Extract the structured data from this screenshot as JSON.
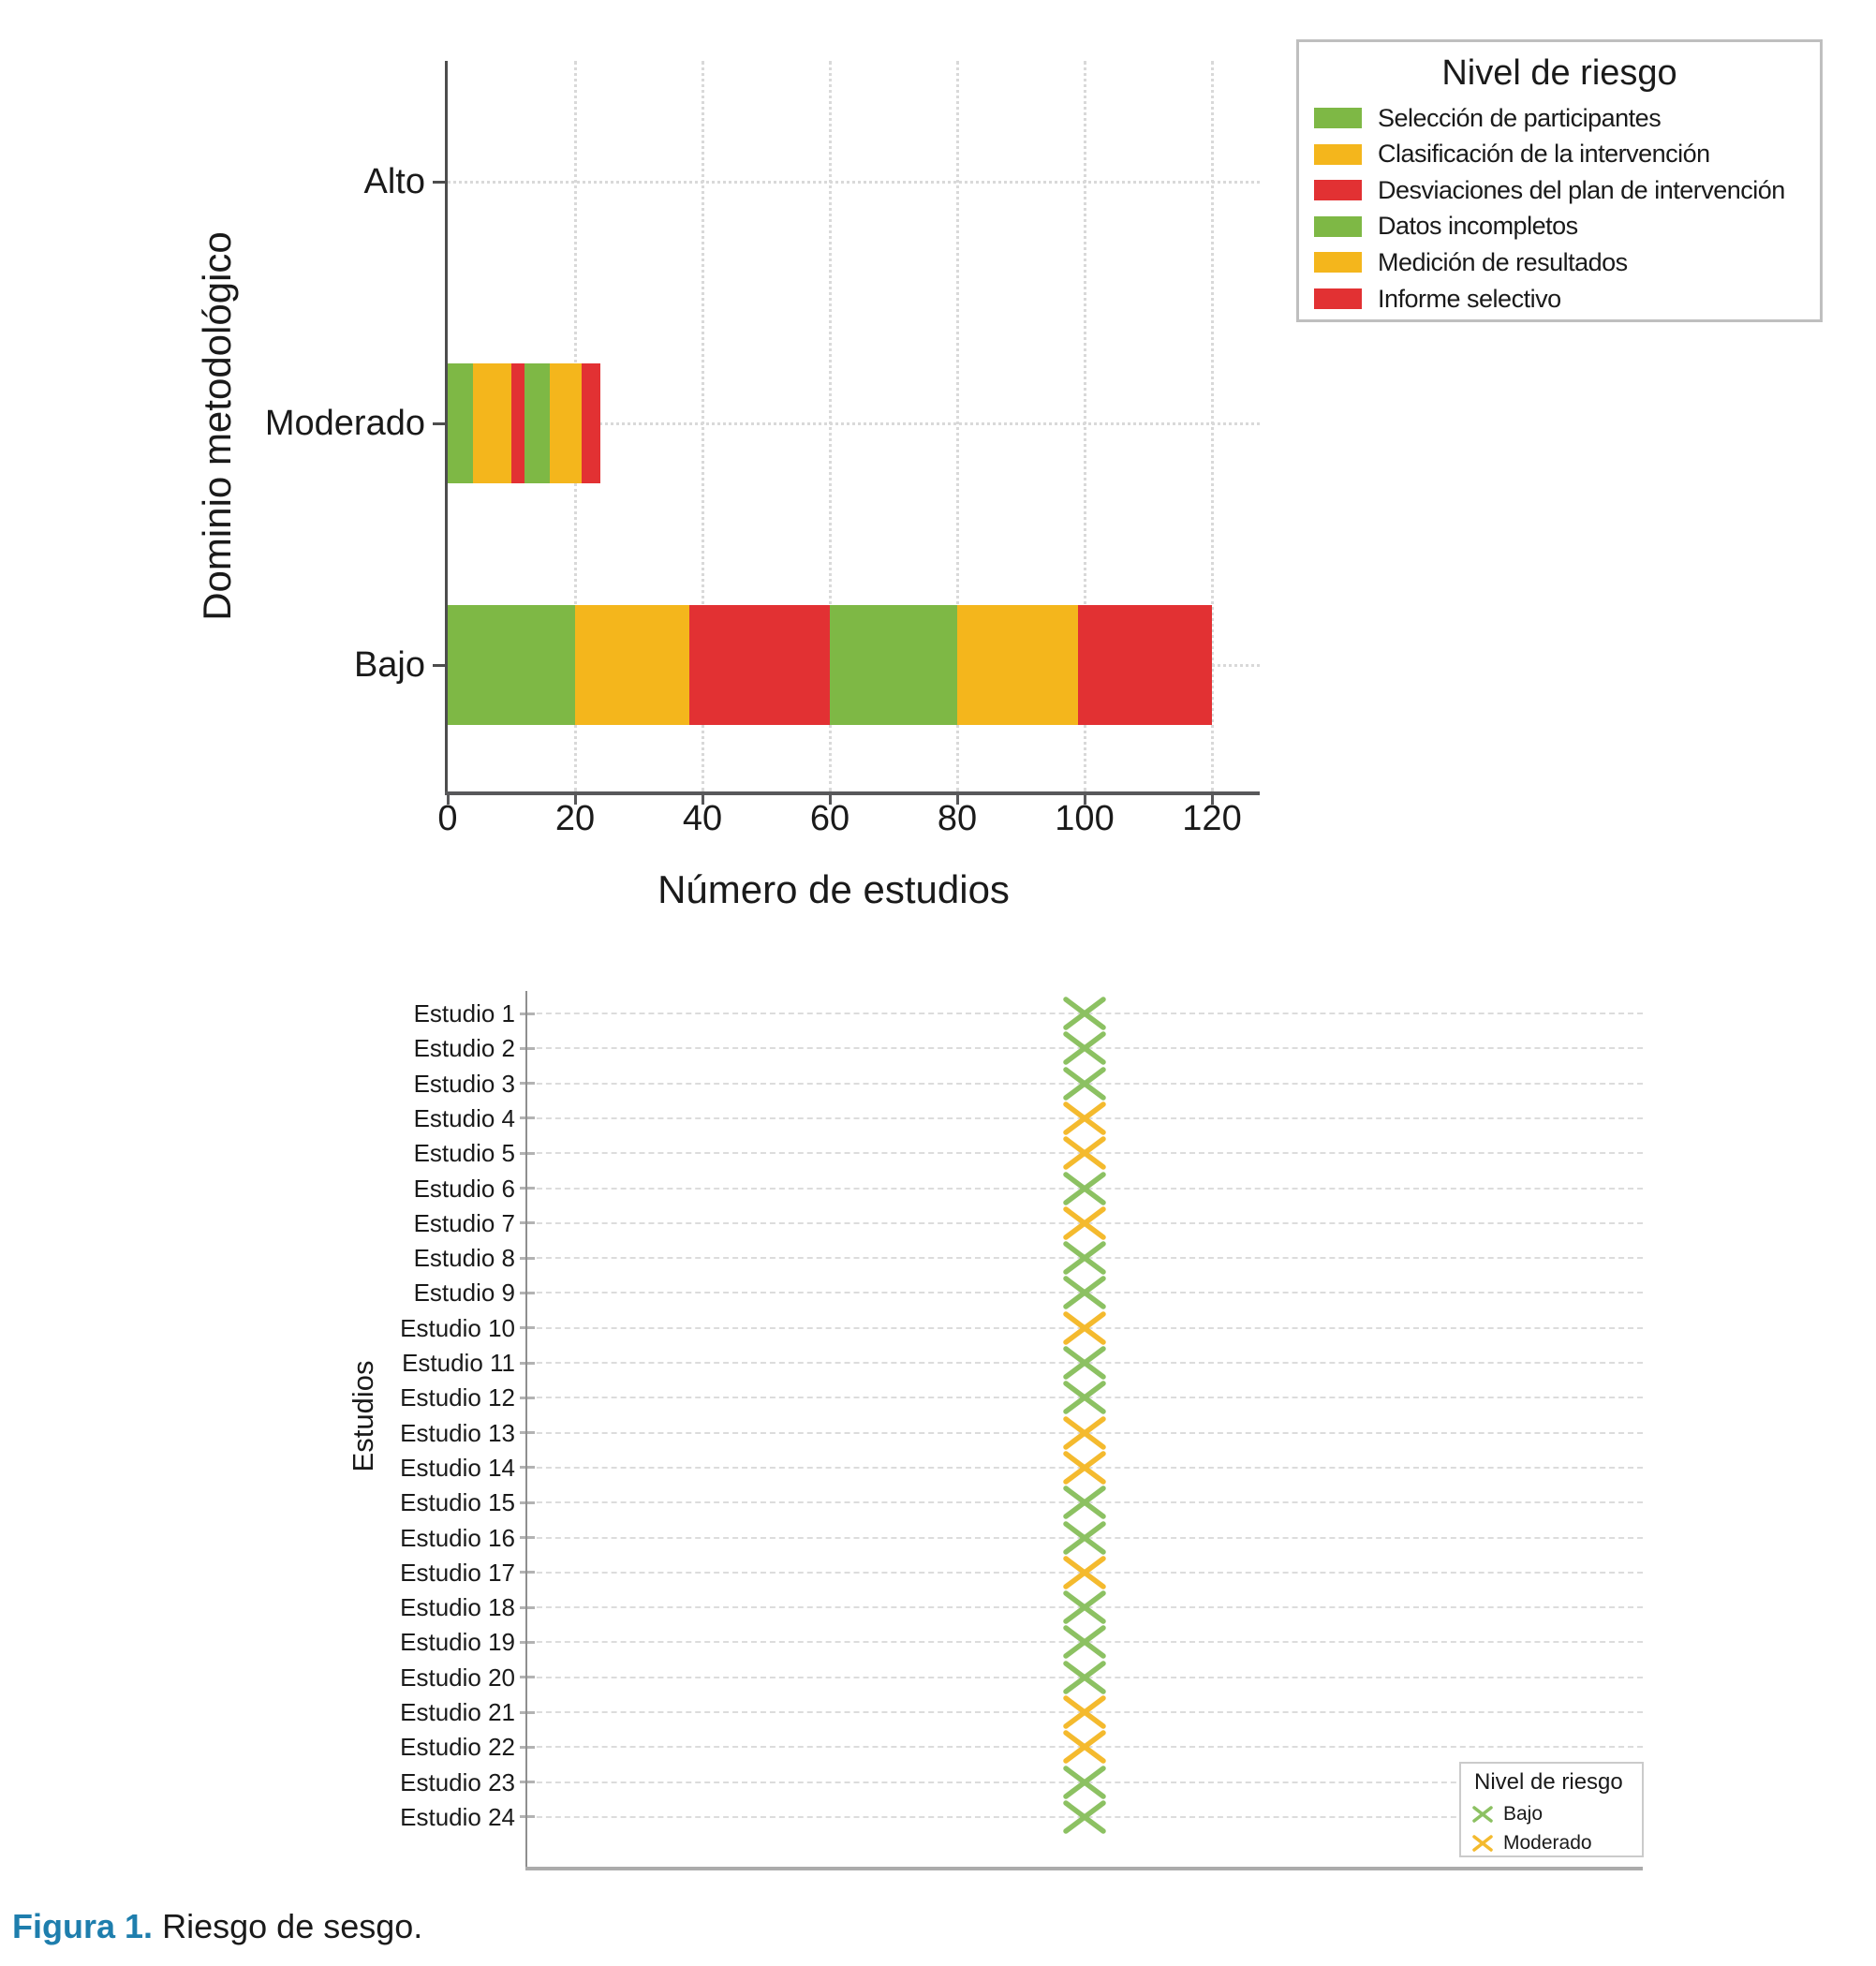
{
  "caption": {
    "label": "Figura 1.",
    "text": "Riesgo de sesgo."
  },
  "colors": {
    "green": "#7EB845",
    "orange": "#F4B61C",
    "red": "#E23133",
    "marker_green": "#8CC162",
    "marker_orange": "#F4BA2E",
    "caption_blue": "#1E7EAD",
    "text": "#1A1A1A",
    "grid": "#D9D9D9",
    "grid_light": "#DCDCDC",
    "axis_dark": "#4D4D4D",
    "axis_mid": "#58585A",
    "bottom_axis_left": "#8F8F8F",
    "bottom_axis": "#ABABAB",
    "tick_light": "#B3B3B3"
  },
  "chart_data": [
    {
      "type": "bar",
      "orientation": "horizontal-stacked",
      "title": "",
      "xlabel": "Número de estudios",
      "ylabel": "Dominio metodológico",
      "categories": [
        "Alto",
        "Moderado",
        "Bajo"
      ],
      "x_ticks": [
        0,
        20,
        40,
        60,
        80,
        100,
        120
      ],
      "xlim": [
        0,
        127.5
      ],
      "grid": true,
      "legend": {
        "title": "Nivel de riesgo",
        "position": "top-right"
      },
      "series": [
        {
          "name": "Selección de participantes",
          "color": "#7EB845",
          "values": [
            0,
            4,
            20
          ]
        },
        {
          "name": "Clasificación de la intervención",
          "color": "#F4B61C",
          "values": [
            0,
            6,
            18
          ]
        },
        {
          "name": "Desviaciones del plan de intervención",
          "color": "#E23133",
          "values": [
            0,
            2,
            22
          ]
        },
        {
          "name": "Datos incompletos",
          "color": "#7EB845",
          "values": [
            0,
            4,
            20
          ]
        },
        {
          "name": "Medición de resultados",
          "color": "#F4B61C",
          "values": [
            0,
            5,
            19
          ]
        },
        {
          "name": "Informe selectivo",
          "color": "#E23133",
          "values": [
            0,
            3,
            21
          ]
        }
      ]
    },
    {
      "type": "scatter",
      "marker": "x",
      "xlabel": "",
      "ylabel": "Estudios",
      "grid": true,
      "legend": {
        "title": "Nivel de riesgo",
        "position": "bottom-right",
        "entries": [
          {
            "label": "Bajo",
            "color": "#8CC162"
          },
          {
            "label": "Moderado",
            "color": "#F4BA2E"
          }
        ]
      },
      "studies": [
        {
          "label": "Estudio 1",
          "risk": "Bajo"
        },
        {
          "label": "Estudio 2",
          "risk": "Bajo"
        },
        {
          "label": "Estudio 3",
          "risk": "Bajo"
        },
        {
          "label": "Estudio 4",
          "risk": "Moderado"
        },
        {
          "label": "Estudio 5",
          "risk": "Moderado"
        },
        {
          "label": "Estudio 6",
          "risk": "Bajo"
        },
        {
          "label": "Estudio 7",
          "risk": "Moderado"
        },
        {
          "label": "Estudio 8",
          "risk": "Bajo"
        },
        {
          "label": "Estudio 9",
          "risk": "Bajo"
        },
        {
          "label": "Estudio 10",
          "risk": "Moderado"
        },
        {
          "label": "Estudio 11",
          "risk": "Bajo"
        },
        {
          "label": "Estudio 12",
          "risk": "Bajo"
        },
        {
          "label": "Estudio 13",
          "risk": "Moderado"
        },
        {
          "label": "Estudio 14",
          "risk": "Moderado"
        },
        {
          "label": "Estudio 15",
          "risk": "Bajo"
        },
        {
          "label": "Estudio 16",
          "risk": "Bajo"
        },
        {
          "label": "Estudio 17",
          "risk": "Moderado"
        },
        {
          "label": "Estudio 18",
          "risk": "Bajo"
        },
        {
          "label": "Estudio 19",
          "risk": "Bajo"
        },
        {
          "label": "Estudio 20",
          "risk": "Bajo"
        },
        {
          "label": "Estudio 21",
          "risk": "Moderado"
        },
        {
          "label": "Estudio 22",
          "risk": "Moderado"
        },
        {
          "label": "Estudio 23",
          "risk": "Bajo"
        },
        {
          "label": "Estudio 24",
          "risk": "Bajo"
        }
      ]
    }
  ]
}
